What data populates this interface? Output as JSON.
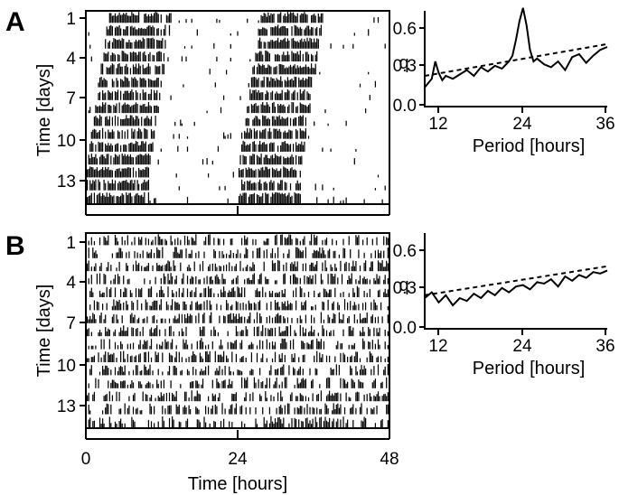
{
  "chart_data": [
    {
      "panel": "A",
      "type": "actogram",
      "ylabel": "Time [days]",
      "y_ticks": [
        "1",
        "4",
        "7",
        "10",
        "13"
      ],
      "days": 15,
      "x_range_hours": [
        0,
        48
      ],
      "x_ticks": [
        0,
        24,
        48
      ],
      "rhythm": "circadian",
      "active_onset_hours": [
        3.5,
        3.2,
        2.9,
        2.6,
        2.3,
        2.0,
        1.7,
        1.4,
        1.1,
        0.8,
        0.5,
        0.2,
        0.0,
        0.0,
        0.0
      ],
      "active_duration_hours": 10
    },
    {
      "panel": "A",
      "type": "line",
      "xlabel": "Period [hours]",
      "ylabel": "q",
      "xlim": [
        10,
        36
      ],
      "ylim": [
        0,
        0.65
      ],
      "x_ticks": [
        12,
        24,
        36
      ],
      "y_ticks": [
        "0.0",
        "0.3",
        "0.6"
      ],
      "series": [
        {
          "style": "solid",
          "x": [
            10,
            11,
            11.5,
            12,
            12.5,
            13,
            14,
            15,
            16,
            17,
            18,
            19,
            20,
            21,
            22,
            22.5,
            23,
            23.5,
            24,
            24.5,
            25,
            25.5,
            26,
            27,
            28,
            29,
            30,
            31,
            32,
            33,
            34,
            35,
            36
          ],
          "y": [
            0.12,
            0.18,
            0.3,
            0.22,
            0.17,
            0.2,
            0.18,
            0.21,
            0.24,
            0.2,
            0.26,
            0.23,
            0.27,
            0.25,
            0.3,
            0.34,
            0.45,
            0.58,
            0.67,
            0.55,
            0.38,
            0.3,
            0.32,
            0.28,
            0.26,
            0.3,
            0.24,
            0.33,
            0.35,
            0.29,
            0.34,
            0.38,
            0.4
          ]
        },
        {
          "style": "dashed",
          "x": [
            10,
            36
          ],
          "y": [
            0.2,
            0.42
          ]
        }
      ]
    },
    {
      "panel": "B",
      "type": "actogram",
      "xlabel": "Time [hours]",
      "ylabel": "Time [days]",
      "y_ticks": [
        "1",
        "4",
        "7",
        "10",
        "13"
      ],
      "x_ticks": [
        "0",
        "24",
        "48"
      ],
      "days": 15,
      "x_range_hours": [
        0,
        48
      ],
      "rhythm": "none (uniform activity)"
    },
    {
      "panel": "B",
      "type": "line",
      "xlabel": "Period [hours]",
      "ylabel": "q",
      "xlim": [
        10,
        36
      ],
      "ylim": [
        0,
        0.65
      ],
      "x_ticks": [
        "12",
        "24",
        "36"
      ],
      "y_ticks": [
        "0.0",
        "0.3",
        "0.6"
      ],
      "series": [
        {
          "style": "solid",
          "x": [
            10,
            11,
            12,
            13,
            14,
            15,
            16,
            17,
            18,
            19,
            20,
            21,
            22,
            23,
            24,
            25,
            26,
            27,
            28,
            29,
            30,
            31,
            32,
            33,
            34,
            35,
            36
          ],
          "y": [
            0.2,
            0.24,
            0.17,
            0.22,
            0.15,
            0.2,
            0.18,
            0.23,
            0.2,
            0.25,
            0.22,
            0.27,
            0.24,
            0.28,
            0.29,
            0.26,
            0.31,
            0.3,
            0.33,
            0.28,
            0.35,
            0.32,
            0.36,
            0.34,
            0.38,
            0.37,
            0.39
          ]
        },
        {
          "style": "dashed",
          "x": [
            10,
            36
          ],
          "y": [
            0.22,
            0.42
          ]
        }
      ]
    }
  ],
  "labels": {
    "panel_a": "A",
    "panel_b": "B",
    "period_xlabel": "Period [hours]",
    "q": "q",
    "days_ylabel": "Time [days]",
    "hours_xlabel": "Time [hours]"
  }
}
